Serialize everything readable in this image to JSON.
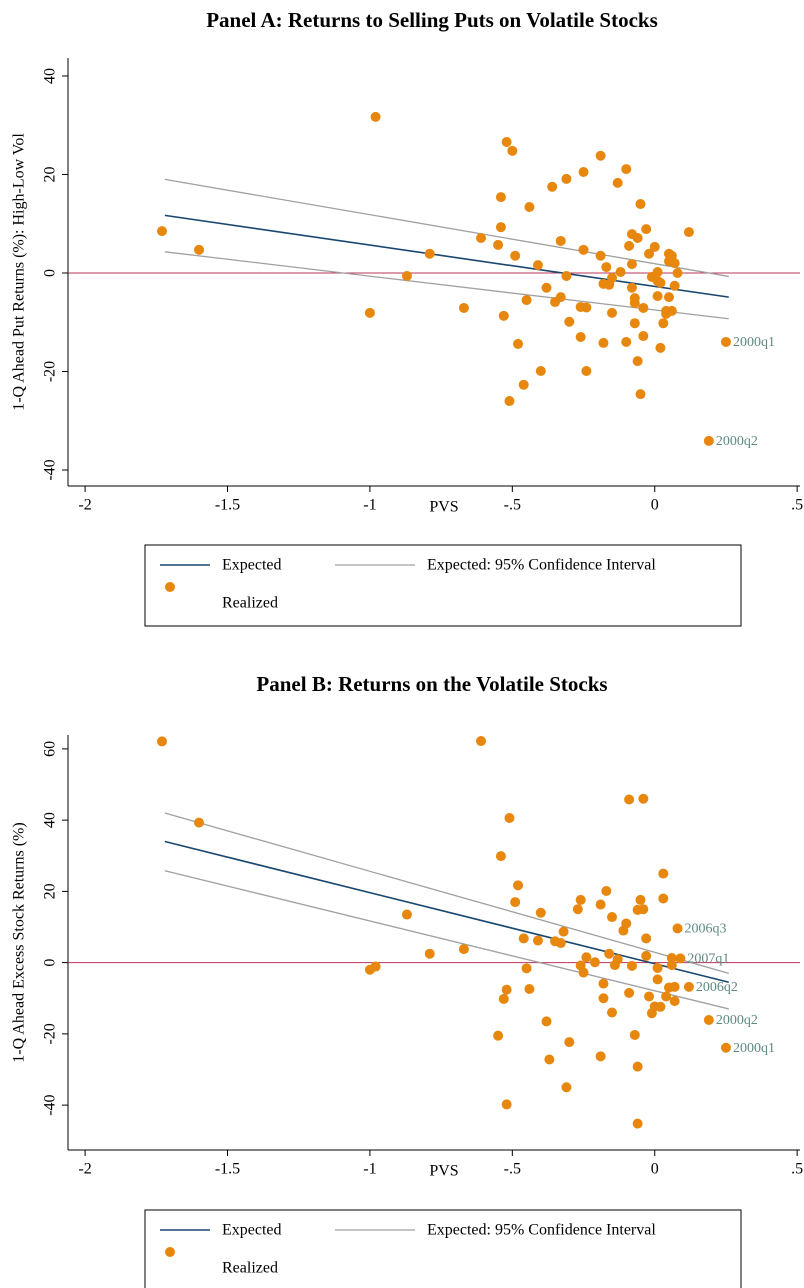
{
  "chart_data": [
    {
      "type": "scatter",
      "title": "Panel A: Returns to Selling Puts on Volatile Stocks",
      "x_label": "PVS",
      "y_label": "1-Q Ahead Put Returns (%): High-Low Vol",
      "xlim": [
        -2.06,
        0.51
      ],
      "ylim": [
        -43.25,
        43.65
      ],
      "xticks": [
        -2,
        {
          "value": -1.5,
          "label": "-1.5"
        },
        -1,
        {
          "value": -0.5,
          "label": "-.5"
        },
        0,
        {
          "value": 0.5,
          "label": ".5"
        }
      ],
      "yticks": [
        -40,
        -20,
        0,
        20,
        40
      ],
      "hline": {
        "value": 0,
        "color": "#b8345a"
      },
      "series": [
        {
          "name": "Expected",
          "kind": "line",
          "color": "#1a476f",
          "x": [
            -1.72,
            0.26
          ],
          "values": [
            11.7,
            -4.9
          ]
        },
        {
          "name": "Expected: 95% Confidence Interval",
          "kind": "band",
          "color": "#a0a0a0",
          "x": [
            -1.72,
            0.26
          ],
          "upper": [
            19.0,
            -0.7
          ],
          "lower": [
            4.3,
            -9.3
          ]
        },
        {
          "name": "Realized",
          "kind": "points",
          "color": "#e8870e",
          "x": [
            -1.73,
            -1.6,
            -0.98,
            -1.0,
            -0.87,
            -0.79,
            -0.67,
            -0.61,
            -0.54,
            -0.54,
            -0.55,
            -0.52,
            -0.5,
            -0.53,
            -0.51,
            -0.49,
            -0.48,
            -0.45,
            -0.46,
            -0.44,
            -0.41,
            -0.4,
            -0.38,
            -0.36,
            -0.35,
            -0.33,
            -0.33,
            -0.31,
            -0.31,
            -0.3,
            -0.26,
            -0.26,
            -0.25,
            -0.25,
            -0.24,
            -0.24,
            -0.19,
            -0.19,
            -0.18,
            -0.18,
            -0.17,
            -0.16,
            -0.15,
            -0.15,
            -0.13,
            -0.12,
            -0.1,
            -0.1,
            -0.09,
            -0.08,
            -0.08,
            -0.08,
            -0.07,
            -0.07,
            -0.07,
            -0.06,
            -0.06,
            -0.05,
            -0.05,
            -0.04,
            -0.04,
            -0.03,
            -0.02,
            -0.01,
            0.0,
            0.01,
            0.01,
            0.01,
            0.02,
            0.02,
            0.03,
            0.04,
            0.04,
            0.05,
            0.05,
            0.05,
            0.06,
            0.06,
            0.07,
            0.07,
            0.08,
            0.12,
            0.25,
            0.19
          ],
          "values": [
            8.5,
            4.7,
            31.7,
            -8.1,
            -0.6,
            3.9,
            -7.1,
            7.1,
            15.4,
            9.3,
            5.7,
            26.6,
            24.8,
            -8.7,
            -26,
            3.5,
            -14.4,
            -5.5,
            -22.7,
            13.4,
            1.6,
            -19.9,
            -3.0,
            17.5,
            -5.9,
            6.5,
            -4.9,
            19.1,
            -0.6,
            -9.9,
            -13,
            -6.9,
            4.7,
            20.5,
            -7,
            -19.9,
            23.8,
            3.5,
            -2.2,
            -14.2,
            1.2,
            -2.4,
            -8.1,
            -1.0,
            18.3,
            0.2,
            21.1,
            -14,
            5.5,
            -3.0,
            1.8,
            7.9,
            -5.1,
            -6.1,
            -10.2,
            -17.9,
            7.1,
            -24.6,
            14,
            -7.1,
            -12.8,
            8.9,
            3.9,
            -0.8,
            5.3,
            -1.6,
            0.2,
            -4.7,
            -15.2,
            -2.0,
            -10.2,
            -7.7,
            -8.3,
            3.9,
            2.4,
            -4.9,
            3.5,
            -7.7,
            -2.6,
            2.0,
            0,
            8.3,
            -14,
            -34.1
          ]
        }
      ],
      "annotations": [
        {
          "text": "2000q1",
          "x": 0.25,
          "y": -14
        },
        {
          "text": "2000q2",
          "x": 0.19,
          "y": -34.1
        }
      ]
    },
    {
      "type": "scatter",
      "title": "Panel B: Returns on the Volatile Stocks",
      "x_label": "PVS",
      "y_label": "1-Q Ahead Excess Stock Returns (%)",
      "xlim": [
        -2.06,
        0.51
      ],
      "ylim": [
        -52.6,
        63.9
      ],
      "xticks": [
        -2,
        {
          "value": -1.5,
          "label": "-1.5"
        },
        -1,
        {
          "value": -0.5,
          "label": "-.5"
        },
        0,
        {
          "value": 0.5,
          "label": ".5"
        }
      ],
      "yticks": [
        -40,
        -20,
        0,
        20,
        40,
        60
      ],
      "hline": {
        "value": 0,
        "color": "#b8345a"
      },
      "series": [
        {
          "name": "Expected",
          "kind": "line",
          "color": "#1a476f",
          "x": [
            -1.72,
            0.26
          ],
          "values": [
            34,
            -5.5
          ]
        },
        {
          "name": "Expected: 95% Confidence Interval",
          "kind": "band",
          "color": "#a0a0a0",
          "x": [
            -1.72,
            0.26
          ],
          "upper": [
            42,
            -3
          ],
          "lower": [
            25.8,
            -13
          ]
        },
        {
          "name": "Realized",
          "kind": "points",
          "color": "#e8870e",
          "x": [
            -1.73,
            -1.6,
            -1.0,
            -0.98,
            -0.87,
            -0.79,
            -0.67,
            -0.61,
            -0.54,
            -0.53,
            -0.52,
            -0.55,
            -0.52,
            -0.51,
            -0.49,
            -0.48,
            -0.46,
            -0.45,
            -0.44,
            -0.4,
            -0.41,
            -0.38,
            -0.37,
            -0.35,
            -0.33,
            -0.32,
            -0.3,
            -0.31,
            -0.27,
            -0.26,
            -0.26,
            -0.25,
            -0.24,
            -0.21,
            -0.19,
            -0.19,
            -0.18,
            -0.18,
            -0.17,
            -0.16,
            -0.15,
            -0.15,
            -0.14,
            -0.13,
            -0.11,
            -0.1,
            -0.09,
            -0.09,
            -0.08,
            -0.07,
            -0.06,
            -0.06,
            -0.06,
            -0.05,
            -0.04,
            -0.04,
            -0.03,
            -0.03,
            -0.02,
            -0.01,
            0.0,
            0.01,
            0.01,
            0.02,
            0.03,
            0.03,
            0.04,
            0.05,
            0.06,
            0.06,
            0.07,
            0.07,
            0.08,
            0.09,
            0.12,
            0.19,
            0.25
          ],
          "values": [
            62.1,
            39.3,
            -2.0,
            -1.1,
            13.5,
            2.5,
            3.8,
            62.2,
            29.9,
            -10.2,
            -7.6,
            -20.5,
            -39.8,
            40.6,
            17,
            21.7,
            6.8,
            -1.6,
            -7.4,
            14.0,
            6.2,
            -16.5,
            -27.2,
            6.0,
            5.5,
            8.7,
            -22.3,
            -35,
            15,
            17.6,
            -0.8,
            -2.8,
            1.5,
            0.1,
            -26.3,
            16.3,
            -5.9,
            -10,
            20.1,
            2.5,
            -14,
            12.8,
            -0.7,
            0.9,
            9.0,
            11.0,
            45.8,
            -8.5,
            -0.9,
            -20.3,
            -29.2,
            -45.2,
            14.8,
            17.6,
            46.0,
            15.0,
            6.8,
            1.9,
            -9.5,
            -14.2,
            -12.3,
            -4.7,
            -1.5,
            -12.4,
            25.0,
            18.0,
            -9.5,
            -7.0,
            1.3,
            -0.7,
            -10.8,
            -6.8,
            9.6,
            1.2,
            -6.8,
            -16.1,
            -23.9
          ]
        }
      ],
      "annotations": [
        {
          "text": "2006q3",
          "x": 0.08,
          "y": 9.6
        },
        {
          "text": "2007q1",
          "x": 0.09,
          "y": 1.2
        },
        {
          "text": "2006q2",
          "x": 0.12,
          "y": -6.8
        },
        {
          "text": "2000q2",
          "x": 0.19,
          "y": -16.1
        },
        {
          "text": "2000q1",
          "x": 0.25,
          "y": -23.9
        }
      ]
    }
  ]
}
